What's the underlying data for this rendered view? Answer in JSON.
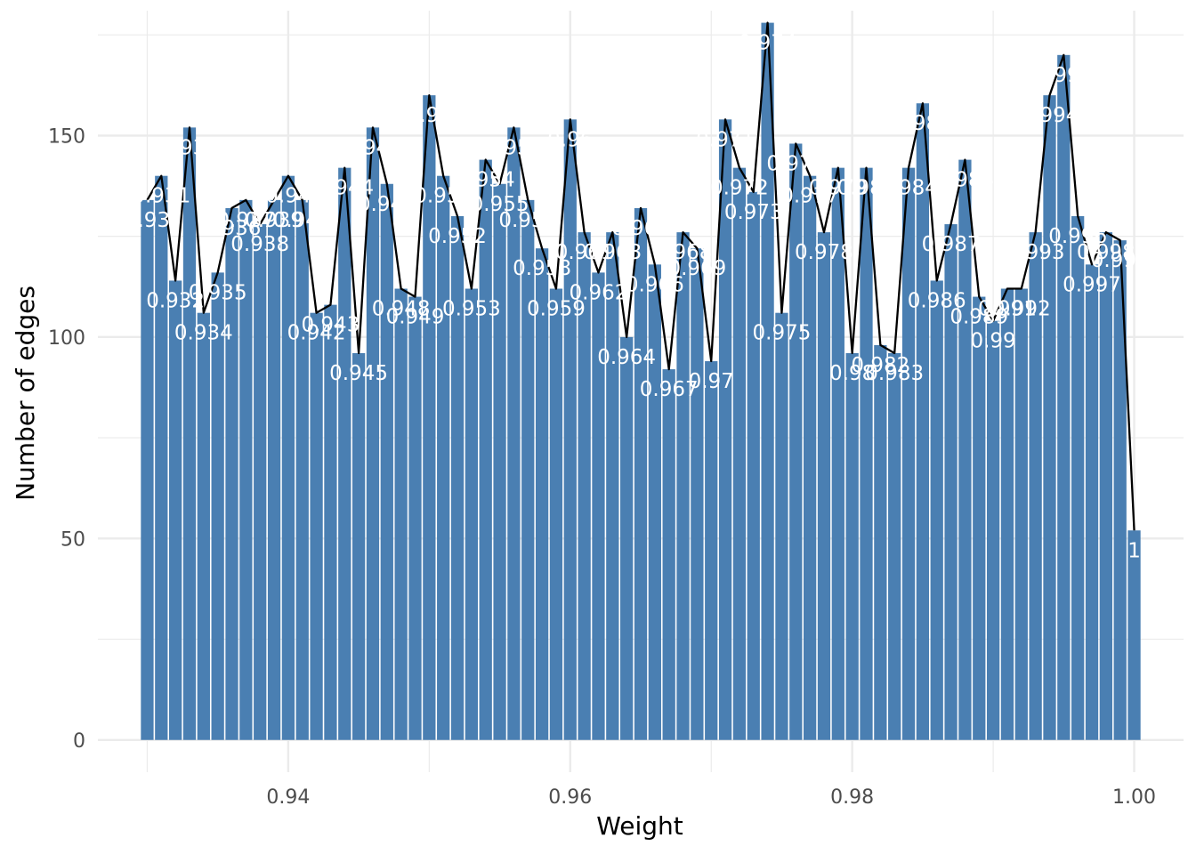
{
  "chart_data": {
    "type": "bar",
    "xlabel": "Weight",
    "ylabel": "Number of edges",
    "x_ticks": [
      "0.94",
      "0.96",
      "0.98",
      "1.00"
    ],
    "x_tick_values": [
      0.94,
      0.96,
      0.98,
      1.0
    ],
    "y_ticks": [
      "0",
      "50",
      "100",
      "150"
    ],
    "y_tick_values": [
      0,
      50,
      100,
      150
    ],
    "xlim": [
      0.9265,
      1.0035
    ],
    "ylim": [
      -8,
      181
    ],
    "grid": true,
    "legend": "none",
    "colors": {
      "bar": "#4a7fb2",
      "line": "#000000",
      "grid": "#ebebeb",
      "label": "#ffffff"
    },
    "x": [
      0.93,
      0.931,
      0.932,
      0.933,
      0.934,
      0.935,
      0.936,
      0.937,
      0.938,
      0.939,
      0.94,
      0.941,
      0.942,
      0.943,
      0.944,
      0.945,
      0.946,
      0.947,
      0.948,
      0.949,
      0.95,
      0.951,
      0.952,
      0.953,
      0.954,
      0.955,
      0.956,
      0.957,
      0.958,
      0.959,
      0.96,
      0.961,
      0.962,
      0.963,
      0.964,
      0.965,
      0.966,
      0.967,
      0.968,
      0.969,
      0.97,
      0.971,
      0.972,
      0.973,
      0.974,
      0.975,
      0.976,
      0.977,
      0.978,
      0.979,
      0.98,
      0.981,
      0.982,
      0.983,
      0.984,
      0.985,
      0.986,
      0.987,
      0.988,
      0.989,
      0.99,
      0.991,
      0.992,
      0.993,
      0.994,
      0.995,
      0.996,
      0.997,
      0.998,
      0.999,
      1.0
    ],
    "labels": [
      "0.93",
      "0.931",
      "0.932",
      "0.933",
      "0.934",
      "0.935",
      "0.936",
      "0.937",
      "0.938",
      "0.939",
      "0.94",
      "0.941",
      "0.942",
      "0.943",
      "0.944",
      "0.945",
      "0.946",
      "0.947",
      "0.948",
      "0.949",
      "0.95",
      "0.951",
      "0.952",
      "0.953",
      "0.954",
      "0.955",
      "0.956",
      "0.957",
      "0.958",
      "0.959",
      "0.96",
      "0.961",
      "0.962",
      "0.963",
      "0.964",
      "0.965",
      "0.966",
      "0.967",
      "0.968",
      "0.969",
      "0.97",
      "0.971",
      "0.972",
      "0.973",
      "0.974",
      "0.975",
      "0.976",
      "0.977",
      "0.978",
      "0.979",
      "0.98",
      "0.981",
      "0.982",
      "0.983",
      "0.984",
      "0.985",
      "0.986",
      "0.987",
      "0.988",
      "0.989",
      "0.99",
      "0.991",
      "0.992",
      "0.993",
      "0.994",
      "0.995",
      "0.996",
      "0.997",
      "0.998",
      "0.999",
      "1"
    ],
    "values": [
      134,
      140,
      114,
      152,
      106,
      116,
      132,
      134,
      128,
      134,
      140,
      134,
      106,
      108,
      142,
      96,
      152,
      138,
      112,
      110,
      160,
      140,
      130,
      112,
      144,
      138,
      152,
      134,
      122,
      112,
      154,
      126,
      116,
      126,
      100,
      132,
      118,
      92,
      126,
      122,
      94,
      154,
      142,
      136,
      178,
      106,
      148,
      140,
      126,
      142,
      96,
      142,
      98,
      96,
      142,
      158,
      114,
      128,
      144,
      110,
      104,
      112,
      112,
      126,
      160,
      170,
      130,
      118,
      126,
      124,
      52
    ]
  }
}
